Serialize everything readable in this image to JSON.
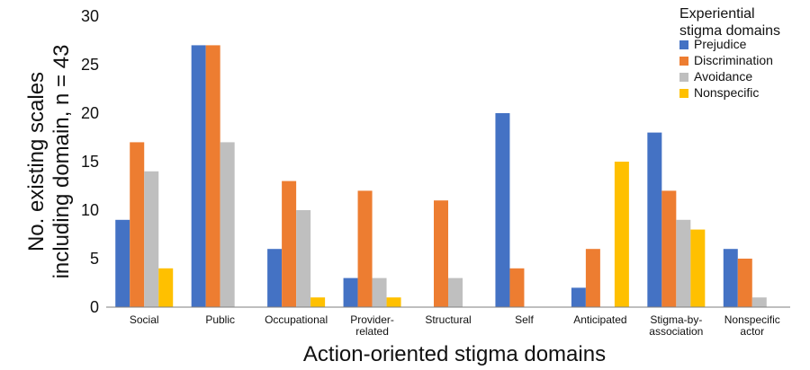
{
  "chart_data": {
    "type": "bar",
    "xlabel": "Action-oriented stigma domains",
    "ylabel_lines": [
      "No. existing scales",
      "including domain, n = 43"
    ],
    "ylim": [
      0,
      30
    ],
    "yticks": [
      0,
      5,
      10,
      15,
      20,
      25,
      30
    ],
    "categories": [
      [
        "Social"
      ],
      [
        "Public"
      ],
      [
        "Occupational"
      ],
      [
        "Provider-",
        "related"
      ],
      [
        "Structural"
      ],
      [
        "Self"
      ],
      [
        "Anticipated"
      ],
      [
        "Stigma-by-",
        "association"
      ],
      [
        "Nonspecific",
        "actor"
      ]
    ],
    "legend": {
      "title_lines": [
        "Experiential",
        "stigma domains"
      ],
      "placement": "top-right"
    },
    "series": [
      {
        "name": "Prejudice",
        "color": "#4472C4",
        "values": [
          9,
          27,
          6,
          3,
          0,
          20,
          2,
          18,
          6
        ]
      },
      {
        "name": "Discrimination",
        "color": "#ED7D31",
        "values": [
          17,
          27,
          13,
          12,
          11,
          4,
          6,
          12,
          5
        ]
      },
      {
        "name": "Avoidance",
        "color": "#BFBFBF",
        "values": [
          14,
          17,
          10,
          3,
          3,
          0,
          0,
          9,
          1
        ]
      },
      {
        "name": "Nonspecific",
        "color": "#FFC000",
        "values": [
          4,
          0,
          1,
          1,
          0,
          0,
          15,
          8,
          0
        ]
      }
    ]
  }
}
